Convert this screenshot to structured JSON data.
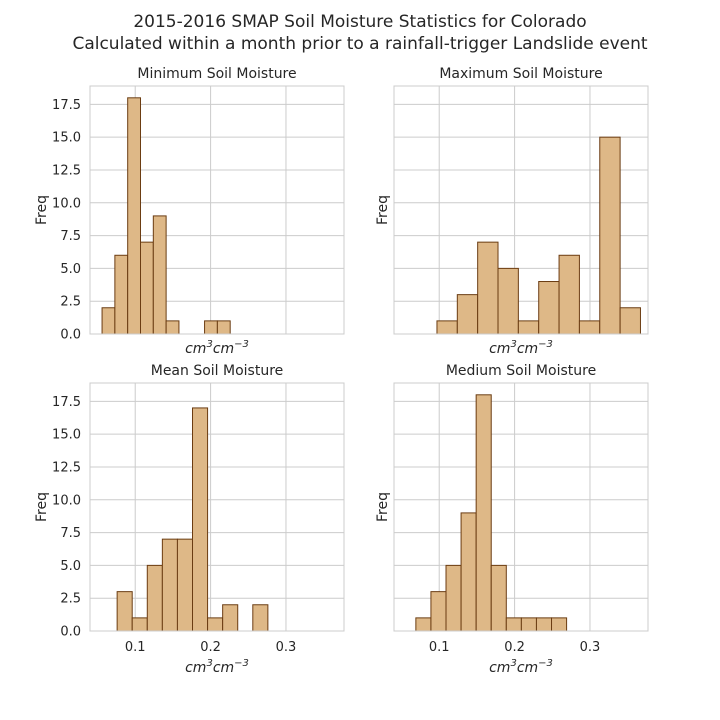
{
  "title_line1": "2015-2016 SMAP Soil Moisture Statistics for Colorado",
  "title_line2": "Calculated within a month prior to a rainfall-trigger Landslide event",
  "colors": {
    "bar_fill": "#DEB887",
    "bar_edge": "#6B3C12",
    "grid": "#CCCCCC"
  },
  "chart_data": [
    {
      "type": "bar",
      "title": "Minimum Soil Moisture",
      "xlabel": "cm³cm⁻³",
      "ylabel": "Freq",
      "xlim": [
        0.04,
        0.377
      ],
      "ylim": [
        0,
        18.9
      ],
      "xticks": [
        0.1,
        0.2,
        0.3
      ],
      "xticklabels": [
        "",
        "",
        ""
      ],
      "yticks": [
        0,
        2.5,
        5,
        7.5,
        10,
        12.5,
        15,
        17.5
      ],
      "yticklabels": [
        "0.0",
        "2.5",
        "5.0",
        "7.5",
        "10.0",
        "12.5",
        "15.0",
        "17.5"
      ],
      "bin_edges": [
        0.056,
        0.073,
        0.09,
        0.107,
        0.124,
        0.141,
        0.158,
        0.175,
        0.192,
        0.209,
        0.226,
        0.243
      ],
      "values": [
        2,
        6,
        18,
        7,
        9,
        1,
        0,
        0,
        1,
        1,
        0
      ],
      "grid": true
    },
    {
      "type": "bar",
      "title": "Maximum Soil Moisture",
      "xlabel": "cm³cm⁻³",
      "ylabel": "Freq",
      "xlim": [
        0.04,
        0.377
      ],
      "ylim": [
        0,
        18.9
      ],
      "xticks": [
        0.1,
        0.2,
        0.3
      ],
      "xticklabels": [
        "",
        "",
        ""
      ],
      "yticks": [
        0,
        2.5,
        5,
        7.5,
        10,
        12.5,
        15,
        17.5
      ],
      "yticklabels": [
        "",
        "",
        "",
        "",
        "",
        "",
        "",
        ""
      ],
      "bin_edges": [
        0.097,
        0.124,
        0.151,
        0.178,
        0.205,
        0.232,
        0.259,
        0.286,
        0.313,
        0.34,
        0.367
      ],
      "values": [
        1,
        3,
        7,
        5,
        1,
        4,
        6,
        1,
        15,
        2
      ],
      "grid": true
    },
    {
      "type": "bar",
      "title": "Mean Soil Moisture",
      "xlabel": "cm³cm⁻³",
      "ylabel": "Freq",
      "xlim": [
        0.04,
        0.377
      ],
      "ylim": [
        0,
        18.9
      ],
      "xticks": [
        0.1,
        0.2,
        0.3
      ],
      "xticklabels": [
        "0.1",
        "0.2",
        "0.3"
      ],
      "yticks": [
        0,
        2.5,
        5,
        7.5,
        10,
        12.5,
        15,
        17.5
      ],
      "yticklabels": [
        "0.0",
        "2.5",
        "5.0",
        "7.5",
        "10.0",
        "12.5",
        "15.0",
        "17.5"
      ],
      "bin_edges": [
        0.076,
        0.096,
        0.116,
        0.136,
        0.156,
        0.176,
        0.196,
        0.216,
        0.236,
        0.256,
        0.276
      ],
      "values": [
        3,
        1,
        5,
        7,
        7,
        17,
        1,
        2,
        0,
        2
      ],
      "grid": true
    },
    {
      "type": "bar",
      "title": "Medium Soil Moisture",
      "xlabel": "cm³cm⁻³",
      "ylabel": "Freq",
      "xlim": [
        0.04,
        0.377
      ],
      "ylim": [
        0,
        18.9
      ],
      "xticks": [
        0.1,
        0.2,
        0.3
      ],
      "xticklabels": [
        "0.1",
        "0.2",
        "0.3"
      ],
      "yticks": [
        0,
        2.5,
        5,
        7.5,
        10,
        12.5,
        15,
        17.5
      ],
      "yticklabels": [
        "",
        "",
        "",
        "",
        "",
        "",
        "",
        ""
      ],
      "bin_edges": [
        0.069,
        0.089,
        0.109,
        0.129,
        0.149,
        0.169,
        0.189,
        0.209,
        0.229,
        0.249,
        0.269
      ],
      "values": [
        1,
        3,
        5,
        9,
        18,
        5,
        1,
        1,
        1,
        1
      ],
      "grid": true
    }
  ]
}
